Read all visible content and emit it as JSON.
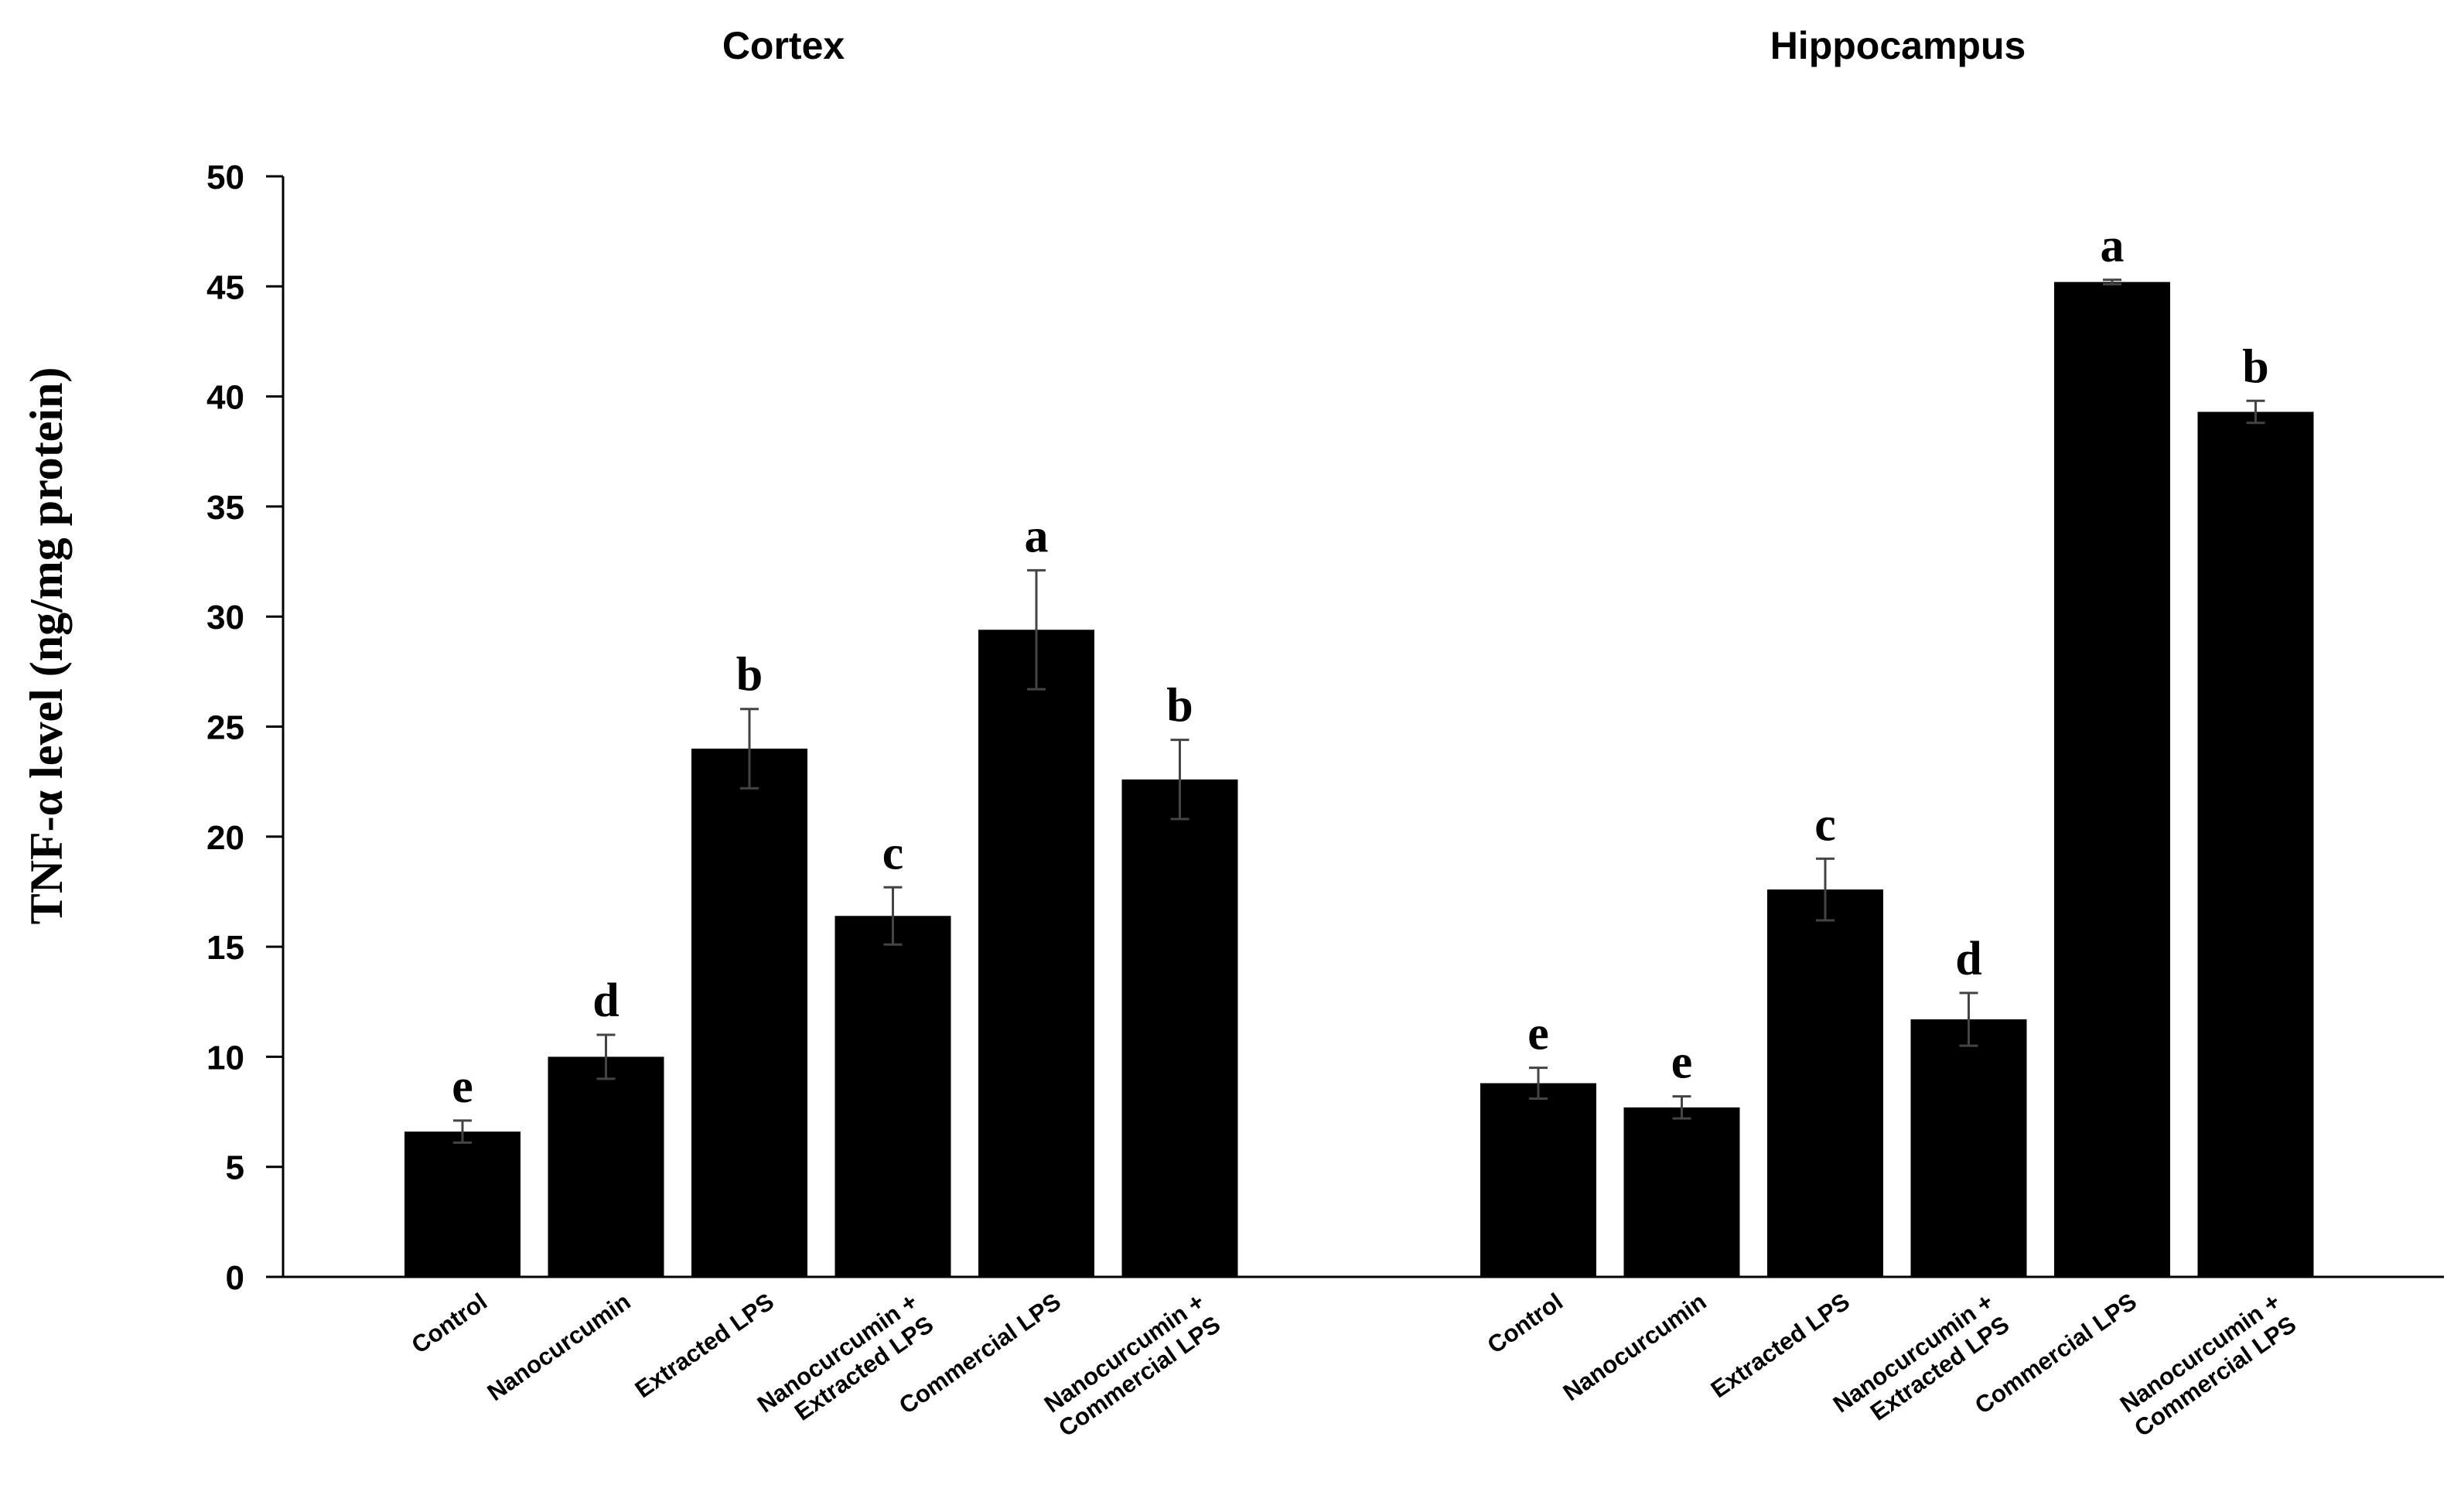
{
  "chart_data": {
    "type": "bar",
    "ylabel": "TNF-α  level (ng/mg protein)",
    "ylim": [
      0,
      50
    ],
    "yticks": [
      0,
      5,
      10,
      15,
      20,
      25,
      30,
      35,
      40,
      45,
      50
    ],
    "bar_color": "#000000",
    "groups": [
      {
        "title": "Cortex",
        "categories": [
          [
            "Control"
          ],
          [
            "Nanocurcumin"
          ],
          [
            "Extracted LPS"
          ],
          [
            "Nanocurcumin +",
            "Extracted LPS"
          ],
          [
            "Commercial LPS"
          ],
          [
            "Nanocurcumin +",
            "Commercial LPS"
          ]
        ],
        "values": [
          6.6,
          10.0,
          24.0,
          16.4,
          29.4,
          22.6
        ],
        "errors": [
          0.5,
          1.0,
          1.8,
          1.3,
          2.7,
          1.8
        ],
        "letters": [
          "e",
          "d",
          "b",
          "c",
          "a",
          "b"
        ]
      },
      {
        "title": "Hippocampus",
        "categories": [
          [
            "Control"
          ],
          [
            "Nanocurcumin"
          ],
          [
            "Extracted LPS"
          ],
          [
            "Nanocurcumin +",
            "Extracted LPS"
          ],
          [
            "Commercial LPS"
          ],
          [
            "Nanocurcumin +",
            "Commercial LPS"
          ]
        ],
        "values": [
          8.8,
          7.7,
          17.6,
          11.7,
          45.2,
          39.3
        ],
        "errors": [
          0.7,
          0.5,
          1.4,
          1.2,
          0.1,
          0.5
        ],
        "letters": [
          "e",
          "e",
          "c",
          "d",
          "a",
          "b"
        ]
      }
    ]
  }
}
